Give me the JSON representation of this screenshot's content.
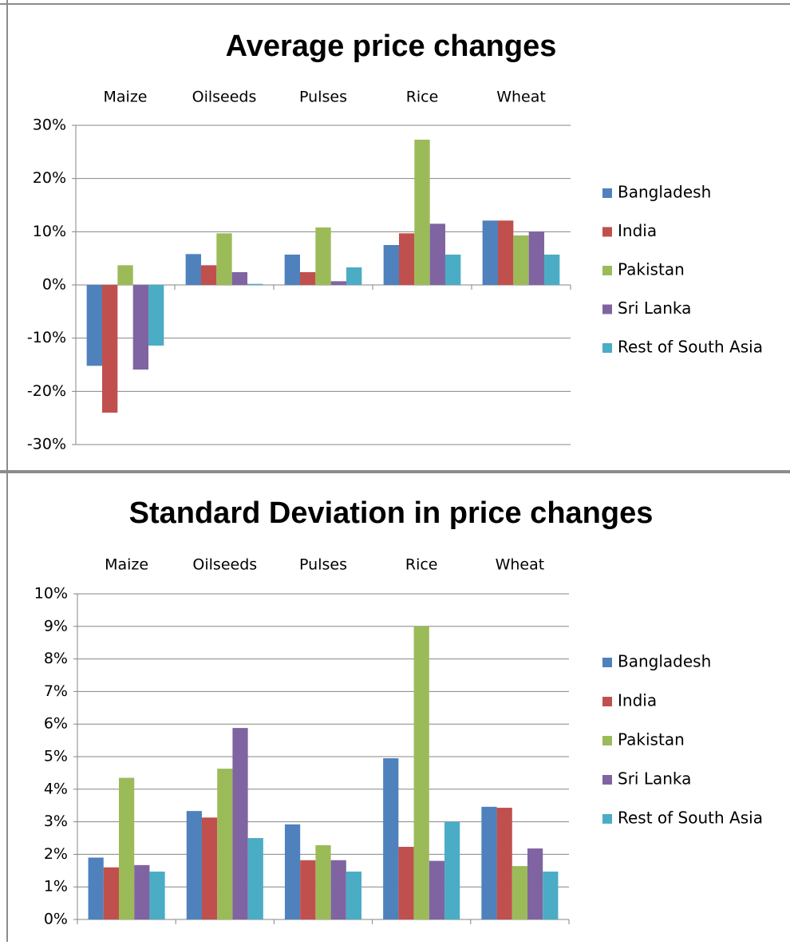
{
  "chart_data": [
    {
      "type": "bar",
      "title": "Average price changes",
      "categories": [
        "Maize",
        "Oilseeds",
        "Pulses",
        "Rice",
        "Wheat"
      ],
      "series": [
        {
          "name": "Bangladesh",
          "color": "#4f81bd",
          "values": [
            -15.2,
            5.8,
            5.7,
            7.5,
            12.1
          ]
        },
        {
          "name": "India",
          "color": "#c0504d",
          "values": [
            -24,
            3.7,
            2.4,
            9.7,
            12.1
          ]
        },
        {
          "name": "Pakistan",
          "color": "#9bbb59",
          "values": [
            3.7,
            9.7,
            10.8,
            27.3,
            9.3
          ]
        },
        {
          "name": "Sri Lanka",
          "color": "#8064a2",
          "values": [
            -15.9,
            2.4,
            0.7,
            11.5,
            10
          ]
        },
        {
          "name": "Rest of South Asia",
          "color": "#4bacc6",
          "values": [
            -11.4,
            0.2,
            3.3,
            5.7,
            5.7
          ]
        }
      ],
      "ylim": [
        -30,
        30
      ],
      "yticks": [
        {
          "value": -30,
          "label": "-30%"
        },
        {
          "value": -20,
          "label": "-20%"
        },
        {
          "value": -10,
          "label": "-10%"
        },
        {
          "value": 0,
          "label": "0%"
        },
        {
          "value": 10,
          "label": "10%"
        },
        {
          "value": 20,
          "label": "20%"
        },
        {
          "value": 30,
          "label": "30%"
        }
      ],
      "grid": true,
      "legend": "right"
    },
    {
      "type": "bar",
      "title": "Standard Deviation in price changes",
      "categories": [
        "Maize",
        "Oilseeds",
        "Pulses",
        "Rice",
        "Wheat"
      ],
      "series": [
        {
          "name": "Bangladesh",
          "color": "#4f81bd",
          "values": [
            1.9,
            3.33,
            2.92,
            4.95,
            3.46
          ]
        },
        {
          "name": "India",
          "color": "#c0504d",
          "values": [
            1.6,
            3.13,
            1.82,
            2.23,
            3.43
          ]
        },
        {
          "name": "Pakistan",
          "color": "#9bbb59",
          "values": [
            4.35,
            4.63,
            2.28,
            9.0,
            1.64
          ]
        },
        {
          "name": "Sri Lanka",
          "color": "#8064a2",
          "values": [
            1.67,
            5.88,
            1.82,
            1.8,
            2.18
          ]
        },
        {
          "name": "Rest of South Asia",
          "color": "#4bacc6",
          "values": [
            1.47,
            2.5,
            1.47,
            3.0,
            1.47
          ]
        }
      ],
      "ylim": [
        0,
        10
      ],
      "yticks": [
        {
          "value": 0,
          "label": "0%"
        },
        {
          "value": 1,
          "label": "1%"
        },
        {
          "value": 2,
          "label": "2%"
        },
        {
          "value": 3,
          "label": "3%"
        },
        {
          "value": 4,
          "label": "4%"
        },
        {
          "value": 5,
          "label": "5%"
        },
        {
          "value": 6,
          "label": "6%"
        },
        {
          "value": 7,
          "label": "7%"
        },
        {
          "value": 8,
          "label": "8%"
        },
        {
          "value": 9,
          "label": "9%"
        },
        {
          "value": 10,
          "label": "10%"
        }
      ],
      "grid": true,
      "legend": "right"
    }
  ]
}
